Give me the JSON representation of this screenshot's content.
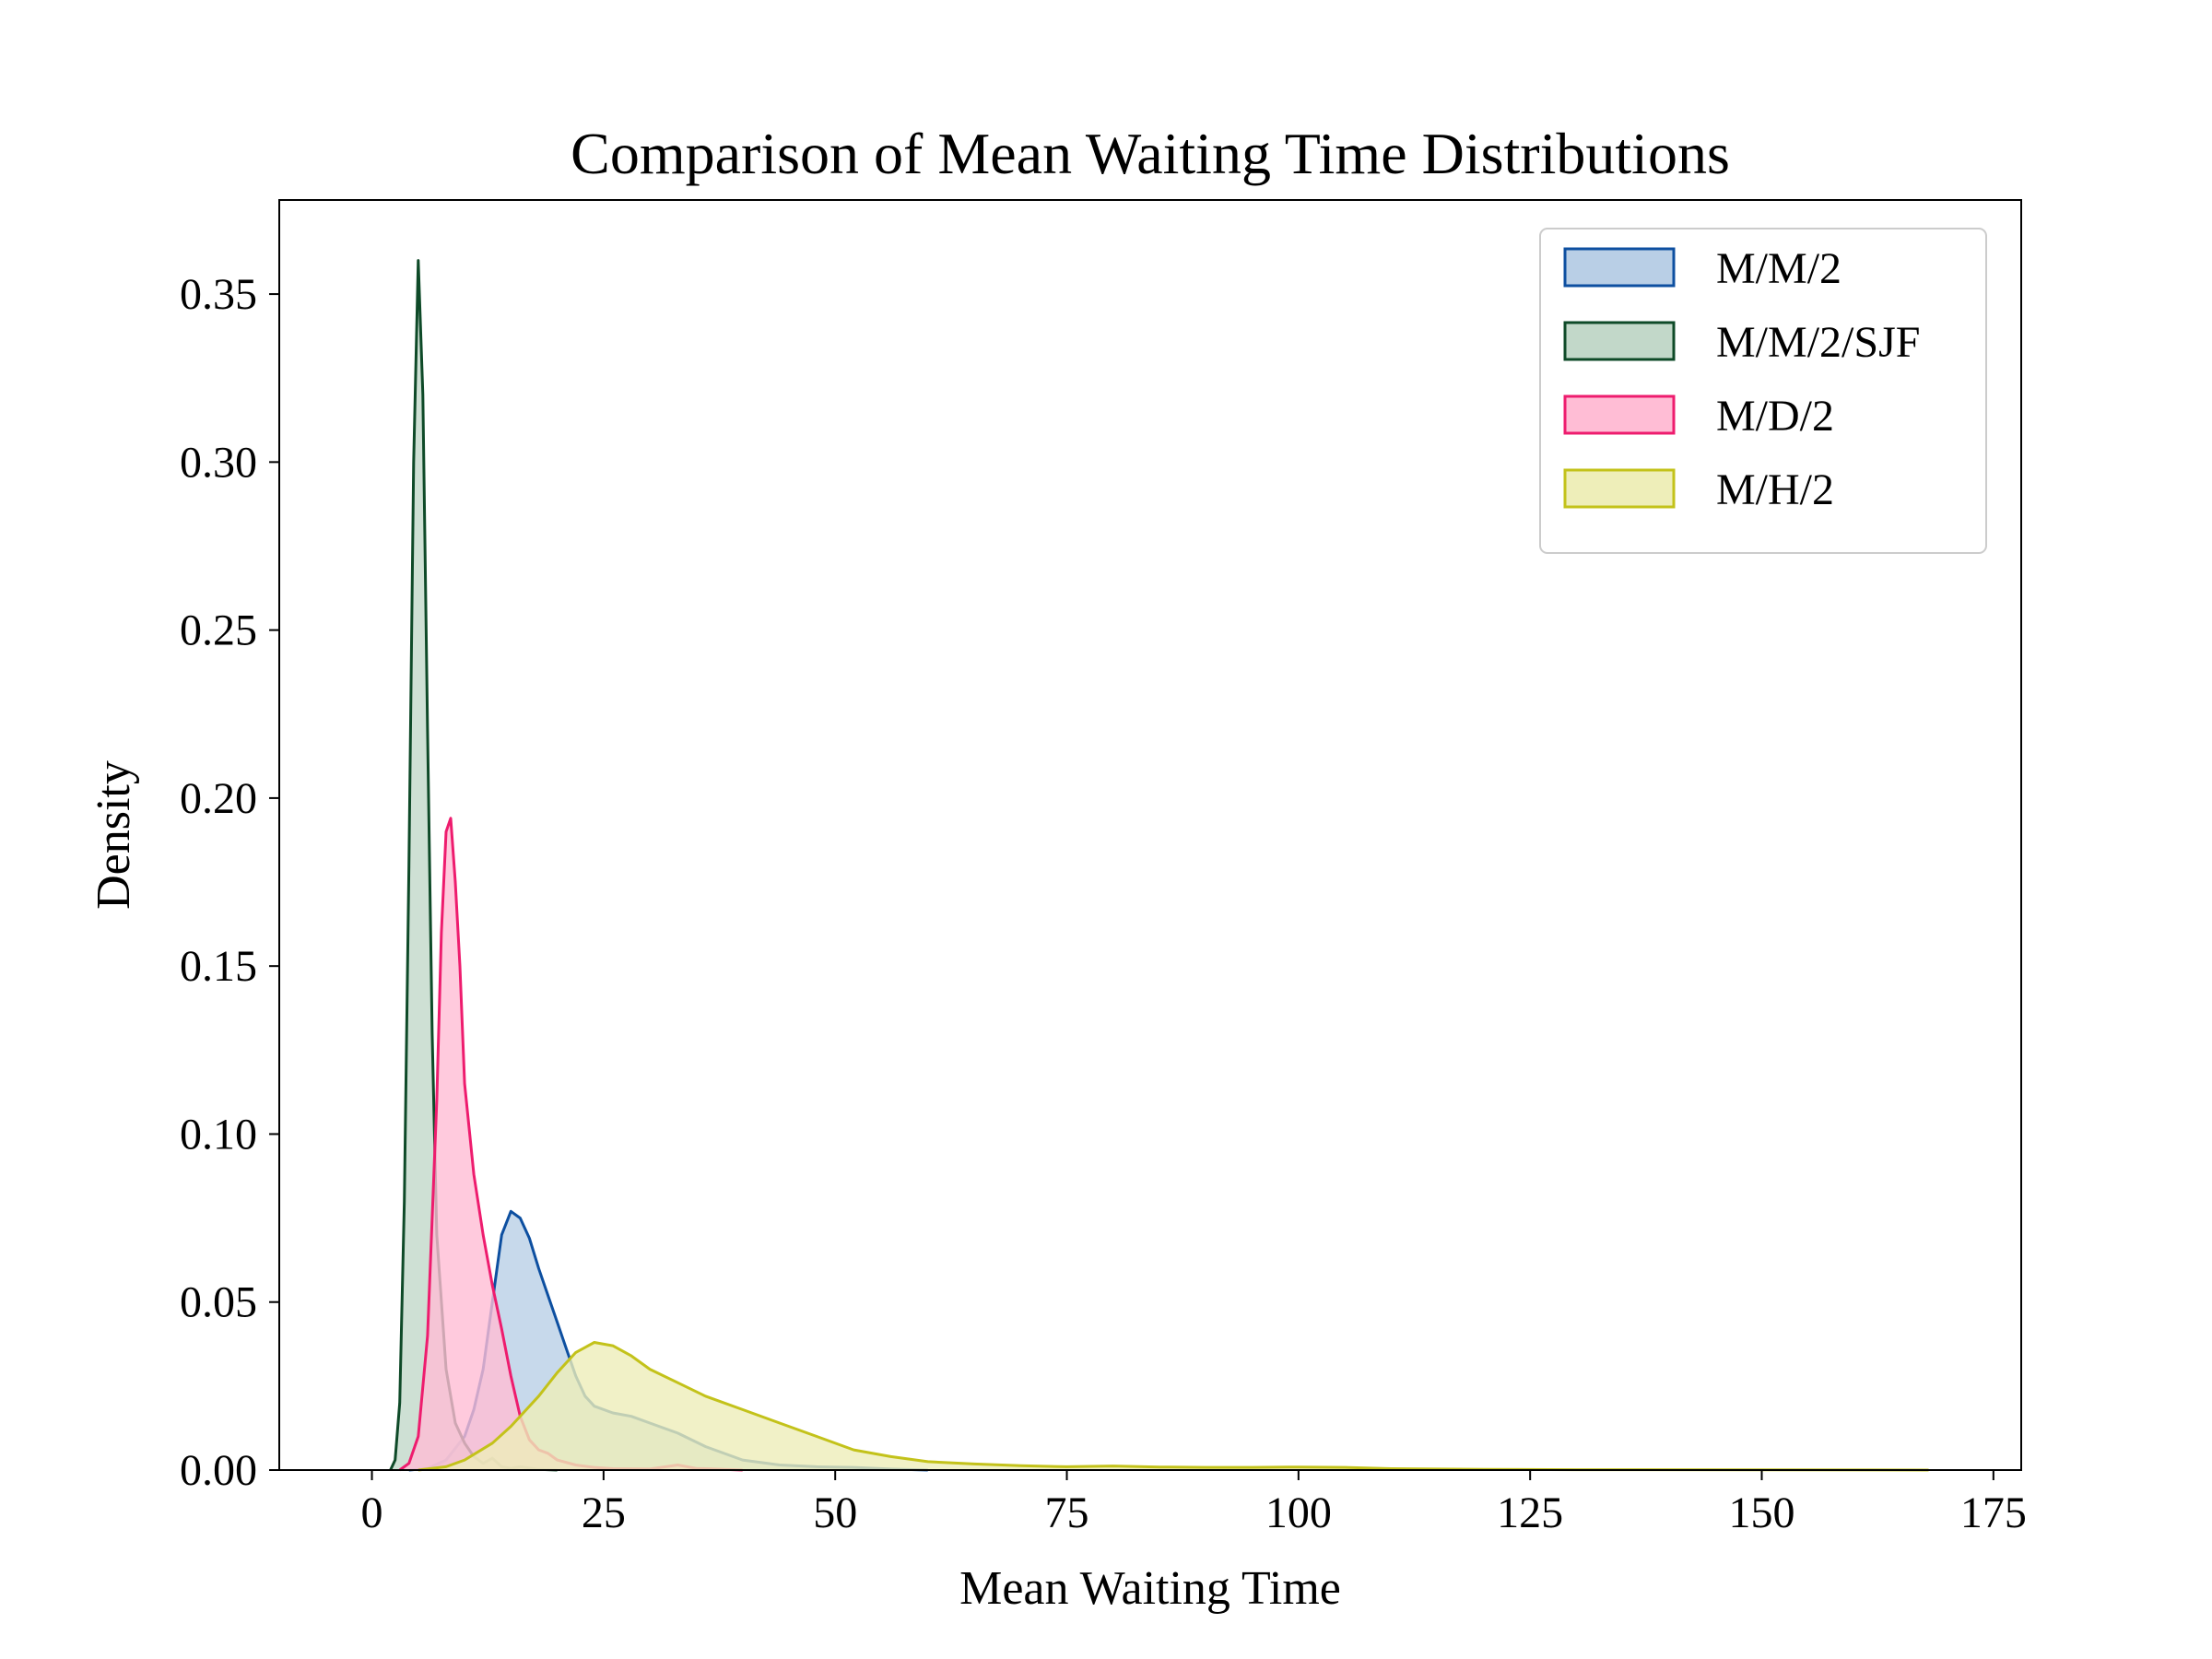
{
  "chart_data": {
    "type": "area",
    "title": "Comparison of Mean Waiting Time Distributions",
    "xlabel": "Mean Waiting Time",
    "ylabel": "Density",
    "xlim": [
      -10,
      178
    ],
    "ylim": [
      0,
      0.378
    ],
    "xticks": [
      0,
      25,
      50,
      75,
      100,
      125,
      150,
      175
    ],
    "xtick_labels": [
      "0",
      "25",
      "50",
      "75",
      "100",
      "125",
      "150",
      "175"
    ],
    "yticks": [
      0.0,
      0.05,
      0.1,
      0.15,
      0.2,
      0.25,
      0.3,
      0.35
    ],
    "ytick_labels": [
      "0.00",
      "0.05",
      "0.10",
      "0.15",
      "0.20",
      "0.25",
      "0.30",
      "0.35"
    ],
    "grid": false,
    "legend_position": "top-right",
    "series": [
      {
        "name": "M/M/2",
        "color": "#0d4fa0",
        "fill": "#b9cfe6",
        "points": [
          [
            4,
            0
          ],
          [
            6,
            0.0005
          ],
          [
            8,
            0.003
          ],
          [
            10,
            0.01
          ],
          [
            11,
            0.018
          ],
          [
            12,
            0.03
          ],
          [
            13,
            0.05
          ],
          [
            14,
            0.07
          ],
          [
            15,
            0.077
          ],
          [
            16,
            0.075
          ],
          [
            17,
            0.069
          ],
          [
            18,
            0.06
          ],
          [
            19,
            0.052
          ],
          [
            20,
            0.044
          ],
          [
            21,
            0.036
          ],
          [
            22,
            0.028
          ],
          [
            23,
            0.022
          ],
          [
            24,
            0.019
          ],
          [
            26,
            0.017
          ],
          [
            28,
            0.016
          ],
          [
            30,
            0.014
          ],
          [
            33,
            0.011
          ],
          [
            36,
            0.007
          ],
          [
            40,
            0.003
          ],
          [
            44,
            0.0015
          ],
          [
            48,
            0.001
          ],
          [
            52,
            0.0008
          ],
          [
            56,
            0.0003
          ],
          [
            60,
            0
          ]
        ]
      },
      {
        "name": "M/M/2/SJF",
        "color": "#0e4a28",
        "fill": "#c2d8c9",
        "points": [
          [
            2,
            0
          ],
          [
            2.5,
            0.003
          ],
          [
            3,
            0.02
          ],
          [
            3.5,
            0.08
          ],
          [
            4,
            0.18
          ],
          [
            4.5,
            0.3
          ],
          [
            5,
            0.36
          ],
          [
            5.5,
            0.32
          ],
          [
            6,
            0.22
          ],
          [
            6.5,
            0.13
          ],
          [
            7,
            0.07
          ],
          [
            8,
            0.03
          ],
          [
            9,
            0.014
          ],
          [
            10,
            0.008
          ],
          [
            11,
            0.004
          ],
          [
            12,
            0.002
          ],
          [
            13,
            0.0035
          ],
          [
            14,
            0.001
          ],
          [
            15,
            0.0005
          ],
          [
            16,
            0.001
          ],
          [
            18,
            0.0002
          ],
          [
            20,
            0
          ]
        ]
      },
      {
        "name": "M/D/2",
        "color": "#ee1c6e",
        "fill": "#ffbdd5",
        "points": [
          [
            3,
            0
          ],
          [
            4,
            0.002
          ],
          [
            5,
            0.01
          ],
          [
            6,
            0.04
          ],
          [
            7,
            0.11
          ],
          [
            7.5,
            0.16
          ],
          [
            8,
            0.19
          ],
          [
            8.5,
            0.194
          ],
          [
            9,
            0.175
          ],
          [
            9.5,
            0.15
          ],
          [
            10,
            0.115
          ],
          [
            11,
            0.088
          ],
          [
            12,
            0.07
          ],
          [
            13,
            0.055
          ],
          [
            14,
            0.042
          ],
          [
            15,
            0.028
          ],
          [
            16,
            0.016
          ],
          [
            17,
            0.009
          ],
          [
            18,
            0.006
          ],
          [
            19,
            0.005
          ],
          [
            20,
            0.003
          ],
          [
            22,
            0.0015
          ],
          [
            24,
            0.0008
          ],
          [
            26,
            0.0004
          ],
          [
            30,
            0.0003
          ],
          [
            33,
            0.0015
          ],
          [
            35,
            0.0005
          ],
          [
            40,
            0
          ]
        ]
      },
      {
        "name": "M/H/2",
        "color": "#c3c21a",
        "fill": "#eeeeb9",
        "points": [
          [
            5,
            0
          ],
          [
            8,
            0.001
          ],
          [
            10,
            0.003
          ],
          [
            13,
            0.008
          ],
          [
            15,
            0.013
          ],
          [
            18,
            0.022
          ],
          [
            20,
            0.029
          ],
          [
            22,
            0.035
          ],
          [
            24,
            0.038
          ],
          [
            26,
            0.037
          ],
          [
            28,
            0.034
          ],
          [
            30,
            0.03
          ],
          [
            33,
            0.026
          ],
          [
            36,
            0.022
          ],
          [
            40,
            0.018
          ],
          [
            44,
            0.014
          ],
          [
            48,
            0.01
          ],
          [
            52,
            0.006
          ],
          [
            56,
            0.004
          ],
          [
            60,
            0.0025
          ],
          [
            65,
            0.0018
          ],
          [
            70,
            0.0013
          ],
          [
            75,
            0.001
          ],
          [
            80,
            0.0012
          ],
          [
            85,
            0.0009
          ],
          [
            90,
            0.0008
          ],
          [
            95,
            0.0008
          ],
          [
            100,
            0.0009
          ],
          [
            105,
            0.0008
          ],
          [
            110,
            0.0004
          ],
          [
            120,
            0.0002
          ],
          [
            130,
            0.0001
          ],
          [
            150,
            5e-05
          ],
          [
            168,
            0
          ]
        ]
      }
    ]
  }
}
